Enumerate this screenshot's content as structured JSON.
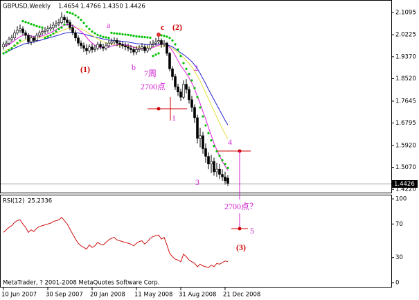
{
  "chart_data": [
    {
      "type": "candlestick",
      "title": "GBPUSD,Weekly",
      "ohlc_labels": [
        "1.4654",
        "1.4766",
        "1.4350",
        "1.4426"
      ],
      "categories": [
        "10 Jun 2007",
        null,
        null,
        null,
        null,
        null,
        null,
        null,
        null,
        null,
        null,
        null,
        null,
        null,
        null,
        null,
        "30 Sep 2007",
        null,
        null,
        null,
        null,
        null,
        null,
        null,
        null,
        null,
        null,
        null,
        null,
        null,
        null,
        null,
        "20 Jan 2008",
        null,
        null,
        null,
        null,
        null,
        null,
        null,
        null,
        null,
        null,
        null,
        null,
        null,
        null,
        null,
        "11 May 2008",
        null,
        null,
        null,
        null,
        null,
        null,
        null,
        null,
        null,
        null,
        null,
        null,
        null,
        null,
        null,
        "31 Aug 2008",
        null,
        null,
        null,
        null,
        null,
        null,
        null,
        null,
        null,
        null,
        null,
        null,
        null,
        null,
        null,
        "21 Dec 2008",
        null
      ],
      "open": [
        1.975,
        1.985,
        1.99,
        2.005,
        2.01,
        2.03,
        2.04,
        2.045,
        2.03,
        2.02,
        1.995,
        2.01,
        2.0,
        2.02,
        2.03,
        2.035,
        2.04,
        2.045,
        2.05,
        2.06,
        2.065,
        2.07,
        2.09,
        2.08,
        2.07,
        2.05,
        2.03,
        2.01,
        1.99,
        1.98,
        1.97,
        1.96,
        1.975,
        1.965,
        1.97,
        1.985,
        1.975,
        1.97,
        1.98,
        1.99,
        1.995,
        2.0,
        1.99,
        1.985,
        1.98,
        1.975,
        1.97,
        1.965,
        1.955,
        1.965,
        1.97,
        1.975,
        1.96,
        1.97,
        1.985,
        1.99,
        1.995,
        2.0,
        1.985,
        1.99,
        1.95,
        1.89,
        1.86,
        1.82,
        1.8,
        1.78,
        1.83,
        1.81,
        1.77,
        1.74,
        1.7,
        1.62,
        1.63,
        1.58,
        1.55,
        1.52,
        1.53,
        1.49,
        1.5,
        1.48,
        1.47,
        1.4654
      ],
      "high": [
        1.995,
        2.0,
        2.015,
        2.022,
        2.042,
        2.055,
        2.062,
        2.055,
        2.04,
        2.028,
        2.02,
        2.018,
        2.03,
        2.04,
        2.045,
        2.052,
        2.058,
        2.065,
        2.072,
        2.078,
        2.085,
        2.11,
        2.1,
        2.092,
        2.08,
        2.062,
        2.04,
        2.02,
        2.0,
        1.992,
        1.985,
        1.985,
        1.988,
        1.982,
        1.995,
        1.998,
        1.988,
        1.992,
        2.002,
        2.008,
        2.012,
        2.01,
        2.0,
        1.995,
        1.992,
        1.988,
        1.982,
        1.975,
        1.978,
        1.982,
        1.99,
        1.985,
        1.982,
        1.998,
        2.002,
        2.01,
        2.02,
        2.008,
        2.002,
        1.995,
        1.955,
        1.9,
        1.87,
        1.832,
        1.812,
        1.845,
        1.85,
        1.822,
        1.785,
        1.752,
        1.712,
        1.66,
        1.645,
        1.6,
        1.565,
        1.555,
        1.545,
        1.525,
        1.52,
        1.5,
        1.49,
        1.4766
      ],
      "low": [
        1.965,
        1.975,
        1.982,
        1.995,
        2.002,
        2.022,
        2.03,
        2.02,
        2.005,
        1.985,
        1.982,
        1.99,
        1.995,
        2.012,
        2.02,
        2.025,
        2.03,
        2.035,
        2.04,
        2.05,
        2.055,
        2.062,
        2.068,
        2.058,
        2.04,
        2.02,
        1.998,
        1.978,
        1.968,
        1.955,
        1.945,
        1.95,
        1.952,
        1.955,
        1.962,
        1.965,
        1.958,
        1.962,
        1.972,
        1.982,
        1.985,
        1.978,
        1.972,
        1.968,
        1.962,
        1.958,
        1.95,
        1.942,
        1.945,
        1.955,
        1.96,
        1.95,
        1.952,
        1.962,
        1.975,
        1.98,
        1.985,
        1.972,
        1.975,
        1.94,
        1.88,
        1.845,
        1.808,
        1.785,
        1.765,
        1.772,
        1.795,
        1.755,
        1.722,
        1.68,
        1.6,
        1.585,
        1.56,
        1.525,
        1.5,
        1.485,
        1.475,
        1.47,
        1.462,
        1.455,
        1.44,
        1.435
      ],
      "close": [
        1.985,
        1.99,
        2.005,
        2.01,
        2.03,
        2.04,
        2.045,
        2.03,
        2.02,
        1.995,
        2.01,
        2.0,
        2.02,
        2.03,
        2.035,
        2.04,
        2.045,
        2.05,
        2.06,
        2.065,
        2.07,
        2.09,
        2.08,
        2.07,
        2.05,
        2.03,
        2.01,
        1.99,
        1.98,
        1.97,
        1.96,
        1.975,
        1.965,
        1.97,
        1.985,
        1.975,
        1.97,
        1.98,
        1.99,
        1.995,
        2.0,
        1.99,
        1.985,
        1.98,
        1.975,
        1.97,
        1.965,
        1.955,
        1.965,
        1.97,
        1.975,
        1.96,
        1.97,
        1.985,
        1.99,
        1.995,
        2.0,
        1.985,
        1.99,
        1.95,
        1.89,
        1.86,
        1.82,
        1.8,
        1.78,
        1.83,
        1.81,
        1.77,
        1.74,
        1.7,
        1.62,
        1.63,
        1.58,
        1.55,
        1.52,
        1.53,
        1.49,
        1.5,
        1.48,
        1.47,
        1.455,
        1.4426
      ],
      "series": [
        {
          "style": "line",
          "color": "#2020d0",
          "values": [
            1.95,
            1.955,
            1.96,
            1.965,
            1.97,
            1.975,
            1.98,
            1.985,
            1.988,
            1.99,
            1.992,
            1.995,
            1.998,
            2.0,
            2.003,
            2.006,
            2.009,
            2.012,
            2.015,
            2.018,
            2.021,
            2.025,
            2.028,
            2.03,
            2.031,
            2.031,
            2.03,
            2.029,
            2.027,
            2.025,
            2.022,
            2.019,
            2.016,
            2.013,
            2.011,
            2.009,
            2.006,
            2.004,
            2.002,
            2.001,
            2.0,
            1.999,
            1.998,
            1.997,
            1.996,
            1.994,
            1.992,
            1.99,
            1.988,
            1.987,
            1.986,
            1.985,
            1.984,
            1.984,
            1.984,
            1.985,
            1.986,
            1.986,
            1.986,
            1.984,
            1.98,
            1.975,
            1.968,
            1.96,
            1.952,
            1.945,
            1.937,
            1.928,
            1.918,
            1.905,
            1.89,
            1.872,
            1.852,
            1.832,
            1.81,
            1.79,
            1.77,
            1.75,
            1.73,
            1.71,
            1.69,
            1.672
          ]
        },
        {
          "style": "line",
          "color": "#e0e040",
          "values": [
            1.96,
            1.963,
            1.967,
            1.972,
            1.978,
            1.985,
            1.992,
            1.998,
            2.003,
            2.006,
            2.008,
            2.009,
            2.01,
            2.011,
            2.013,
            2.015,
            2.018,
            2.021,
            2.025,
            2.029,
            2.033,
            2.038,
            2.042,
            2.046,
            2.049,
            2.05,
            2.05,
            2.048,
            2.045,
            2.04,
            2.034,
            2.027,
            2.02,
            2.013,
            2.006,
            2.0,
            1.995,
            1.991,
            1.988,
            1.985,
            1.983,
            1.981,
            1.98,
            1.979,
            1.978,
            1.977,
            1.976,
            1.975,
            1.974,
            1.974,
            1.974,
            1.974,
            1.974,
            1.975,
            1.976,
            1.977,
            1.978,
            1.979,
            1.98,
            1.979,
            1.975,
            1.969,
            1.962,
            1.953,
            1.943,
            1.934,
            1.923,
            1.911,
            1.897,
            1.881,
            1.862,
            1.842,
            1.82,
            1.797,
            1.773,
            1.75,
            1.726,
            1.703,
            1.68,
            1.658,
            1.637,
            1.617
          ]
        },
        {
          "style": "line",
          "color": "#e020e0",
          "values": [
            1.975,
            1.98,
            1.985,
            1.992,
            2.0,
            2.008,
            2.015,
            2.02,
            2.022,
            2.02,
            2.018,
            2.015,
            2.014,
            2.015,
            2.018,
            2.022,
            2.026,
            2.03,
            2.036,
            2.042,
            2.048,
            2.055,
            2.06,
            2.062,
            2.062,
            2.058,
            2.052,
            2.044,
            2.035,
            2.025,
            2.012,
            2.0,
            1.99,
            1.982,
            1.976,
            1.972,
            1.972,
            1.973,
            1.975,
            1.978,
            1.981,
            1.983,
            1.984,
            1.984,
            1.983,
            1.981,
            1.978,
            1.974,
            1.971,
            1.97,
            1.969,
            1.968,
            1.968,
            1.97,
            1.973,
            1.977,
            1.982,
            1.985,
            1.987,
            1.983,
            1.973,
            1.96,
            1.942,
            1.922,
            1.902,
            1.888,
            1.872,
            1.855,
            1.835,
            1.812,
            1.782,
            1.755,
            1.724,
            1.695,
            1.662,
            1.632,
            1.6,
            1.575,
            1.552,
            1.53,
            1.512,
            1.496
          ]
        },
        {
          "style": "dots",
          "color": "#00c000",
          "values": [
            1.95,
            1.955,
            1.962,
            1.97,
            1.98,
            1.99,
            2.0,
            2.075,
            2.072,
            2.068,
            2.064,
            2.06,
            2.056,
            2.053,
            2.05,
            2.01,
            2.015,
            2.02,
            2.027,
            2.035,
            2.045,
            2.05,
            2.062,
            2.11,
            2.108,
            2.104,
            2.098,
            2.09,
            2.08,
            2.068,
            2.055,
            2.045,
            2.035,
            2.028,
            2.022,
            2.018,
            2.014,
            2.012,
            2.01,
            2.03,
            2.028,
            2.027,
            2.026,
            2.024,
            2.023,
            2.022,
            2.02,
            2.018,
            2.016,
            2.015,
            2.014,
            2.013,
            2.012,
            2.011,
            1.94,
            1.945,
            1.95,
            2.02,
            2.018,
            2.015,
            2.01,
            2.0,
            1.985,
            1.965,
            1.94,
            1.912,
            1.89,
            1.87,
            1.845,
            1.815,
            1.78,
            1.74,
            1.705,
            1.67,
            1.64,
            1.612,
            1.59,
            1.57,
            1.552,
            1.535,
            1.52,
            1.505
          ]
        }
      ],
      "ylim": [
        1.409,
        2.152
      ],
      "yticks": [
        2.1095,
        2.0225,
        {
          "value": 1.937,
          "label": "1.9370"
        },
        {
          "value": 1.852,
          "label": "1.8520"
        },
        1.7645,
        1.6795,
        {
          "value": 1.592,
          "label": "1.5920"
        },
        {
          "value": 1.507,
          "label": "1.5070"
        },
        {
          "value": 1.422,
          "label": "1.4220"
        }
      ],
      "annotations": [
        "a",
        "b",
        "c",
        "(1)",
        "(2)",
        "2",
        "7周",
        "2700点",
        "1",
        "3",
        "4",
        "2700点？",
        "5",
        "(3)"
      ]
    },
    {
      "type": "line",
      "series": [
        {
          "name": "RSI(12)",
          "color": "#d01010",
          "values": [
            60,
            63,
            66,
            68,
            72,
            74,
            75,
            70,
            66,
            60,
            63,
            61,
            65,
            67,
            68,
            69,
            70,
            71,
            73,
            74,
            75,
            78,
            74,
            70,
            64,
            58,
            52,
            47,
            44,
            42,
            40,
            45,
            42,
            44,
            48,
            46,
            45,
            48,
            51,
            53,
            54,
            51,
            50,
            49,
            48,
            47,
            46,
            44,
            47,
            49,
            50,
            46,
            49,
            53,
            55,
            56,
            57,
            52,
            54,
            45,
            35,
            31,
            28,
            27,
            25,
            34,
            31,
            27,
            25,
            23,
            19,
            22,
            20,
            19,
            18,
            21,
            19,
            23,
            22,
            24,
            25.8,
            25.2336
          ]
        }
      ],
      "ylim": [
        -5,
        105
      ],
      "yticks": [
        100,
        70,
        30,
        0
      ]
    }
  ],
  "copyright": "MetaTrader, ? 2001-2008 MetaQuotes Software Corp."
}
